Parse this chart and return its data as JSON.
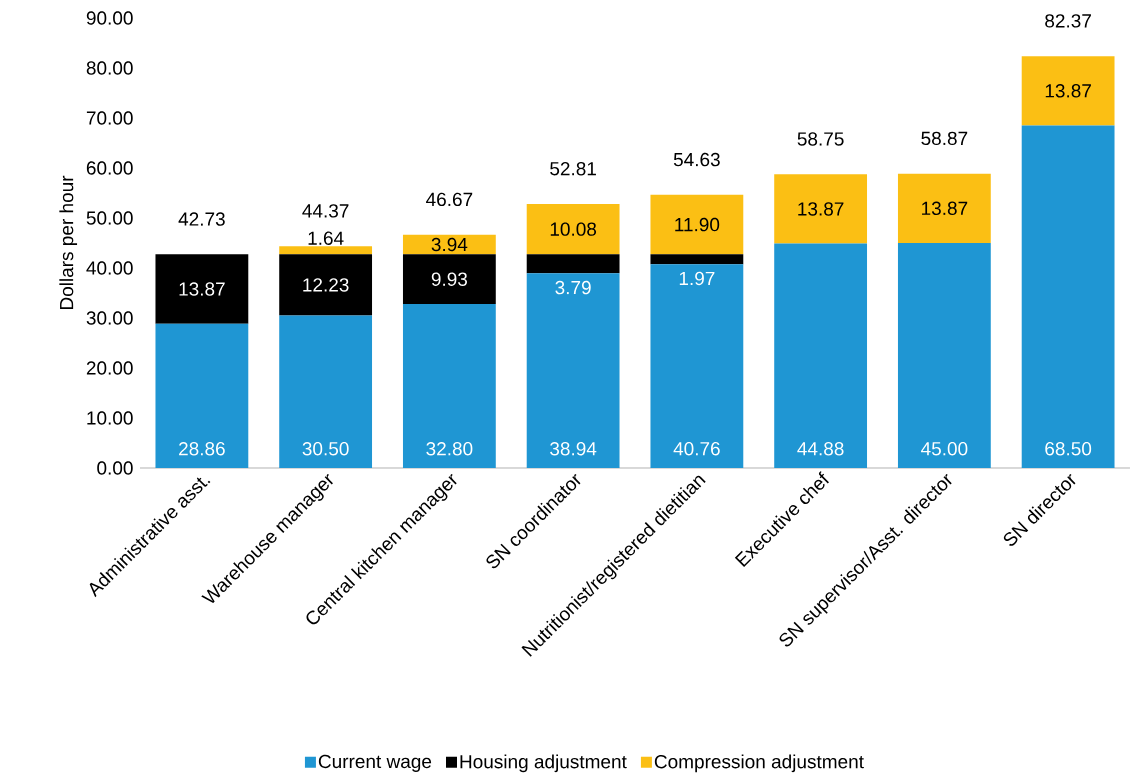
{
  "chart_data": {
    "type": "bar",
    "stacked": true,
    "ylabel": "Dollars per hour",
    "categories": [
      "Administrative asst.",
      "Warehouse manager",
      "Central kitchen manager",
      "SN coordinator",
      "Nutritionist/registered dietitian",
      "Executive chef",
      "SN supervisor/Asst. director",
      "SN director"
    ],
    "series": [
      {
        "name": "Current wage",
        "color": "#1f96d3",
        "values": [
          28.86,
          30.5,
          32.8,
          38.94,
          40.76,
          44.88,
          45.0,
          68.5
        ],
        "value_labels": [
          "28.86",
          "30.50",
          "32.80",
          "38.94",
          "40.76",
          "44.88",
          "45.00",
          "68.50"
        ]
      },
      {
        "name": "Housing adjustment",
        "color": "#000000",
        "values": [
          13.87,
          12.23,
          9.93,
          3.79,
          1.97,
          0,
          0,
          0
        ],
        "value_labels": [
          "13.87",
          "12.23",
          "9.93",
          "3.79",
          "1.97",
          null,
          null,
          null
        ]
      },
      {
        "name": "Compression adjustment",
        "color": "#fbbf14",
        "values": [
          0,
          1.64,
          3.94,
          10.08,
          11.9,
          13.87,
          13.87,
          13.87
        ],
        "value_labels": [
          null,
          "1.64",
          "3.94",
          "10.08",
          "11.90",
          "13.87",
          "13.87",
          "13.87"
        ]
      }
    ],
    "totals": [
      "42.73",
      "44.37",
      "46.67",
      "52.81",
      "54.63",
      "58.75",
      "58.87",
      "82.37"
    ],
    "ylim": [
      0,
      90
    ],
    "yticks": [
      {
        "value": 0,
        "label": "0.00"
      },
      {
        "value": 10,
        "label": "10.00"
      },
      {
        "value": 20,
        "label": "20.00"
      },
      {
        "value": 30,
        "label": "30.00"
      },
      {
        "value": 40,
        "label": "40.00"
      },
      {
        "value": 50,
        "label": "50.00"
      },
      {
        "value": 60,
        "label": "60.00"
      },
      {
        "value": 70,
        "label": "70.00"
      },
      {
        "value": 80,
        "label": "80.00"
      },
      {
        "value": 90,
        "label": "90.00"
      }
    ],
    "grid": false,
    "legend": "bottom"
  }
}
